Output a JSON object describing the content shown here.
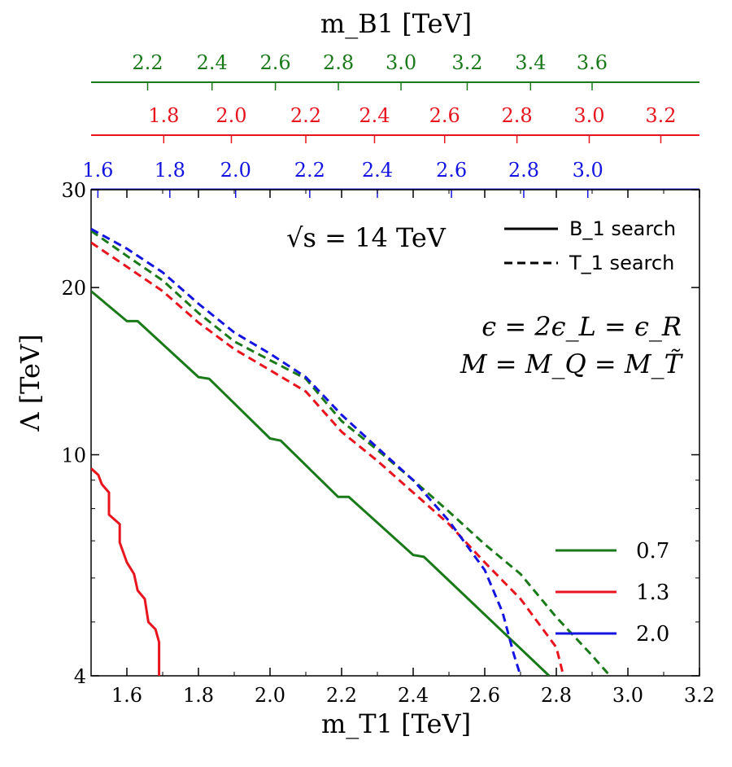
{
  "chart_data": {
    "type": "line",
    "xlabel": "m_T1 [TeV]",
    "ylabel": "Λ [TeV]",
    "yscale": "log",
    "xlim": [
      1.5,
      3.2
    ],
    "ylim": [
      4,
      30
    ],
    "x_ticks": [
      "1.6",
      "1.8",
      "2.0",
      "2.2",
      "2.4",
      "2.6",
      "2.8",
      "3.0",
      "3.2"
    ],
    "x_tick_values": [
      1.6,
      1.8,
      2.0,
      2.2,
      2.4,
      2.6,
      2.8,
      3.0,
      3.2
    ],
    "y_ticks": [
      "4",
      "10",
      "20",
      "30"
    ],
    "y_tick_values": [
      4,
      10,
      20,
      30
    ],
    "y_minor_values": [
      5,
      6,
      7,
      8,
      9
    ],
    "top_axes": [
      {
        "label": "m_B1 [TeV]",
        "color": "#1a7a1a",
        "ticks": [
          "2.2",
          "2.4",
          "2.6",
          "2.8",
          "3.0",
          "3.2",
          "3.4",
          "3.6"
        ],
        "positions_mT1": [
          1.658,
          1.838,
          2.015,
          2.191,
          2.366,
          2.551,
          2.728,
          2.9
        ]
      },
      {
        "label": "",
        "color": "#e8141e",
        "ticks": [
          "1.8",
          "2.0",
          "2.2",
          "2.4",
          "2.6",
          "2.8",
          "3.0",
          "3.2"
        ],
        "positions_mT1": [
          1.703,
          1.892,
          2.1,
          2.292,
          2.488,
          2.69,
          2.892,
          3.092
        ]
      },
      {
        "label": "",
        "color": "#1414e0",
        "ticks": [
          "1.6",
          "1.8",
          "2.0",
          "2.2",
          "2.4",
          "2.6",
          "2.8",
          "3.0"
        ],
        "positions_mT1": [
          1.519,
          1.72,
          1.904,
          2.111,
          2.3,
          2.507,
          2.709,
          2.888
        ]
      }
    ],
    "annotations": {
      "energy": "√s = 14 TeV",
      "eps": "ϵ = 2ϵ_L = ϵ_R",
      "mass": "M = M_Q = M_T̃"
    },
    "style_legend": [
      {
        "label": "B_1 search",
        "dash": "solid"
      },
      {
        "label": "T_1 search",
        "dash": "dashed"
      }
    ],
    "epsilon_legend": [
      {
        "label": "0.7",
        "color": "#1a7a1a"
      },
      {
        "label": "1.3",
        "color": "#e8141e"
      },
      {
        "label": "2.0",
        "color": "#1414e0"
      }
    ],
    "series": [
      {
        "name": "0.7 B1 search",
        "color": "#1a7a1a",
        "dash": "solid",
        "x": [
          1.5,
          1.6,
          1.63,
          1.8,
          1.83,
          2.0,
          2.03,
          2.19,
          2.22,
          2.4,
          2.43,
          2.78
        ],
        "y": [
          19.7,
          17.4,
          17.4,
          13.8,
          13.7,
          10.7,
          10.6,
          8.4,
          8.4,
          6.6,
          6.55,
          4.0
        ]
      },
      {
        "name": "1.3 B1 search",
        "color": "#e8141e",
        "dash": "solid",
        "x": [
          1.5,
          1.52,
          1.53,
          1.55,
          1.55,
          1.58,
          1.58,
          1.6,
          1.62,
          1.63,
          1.65,
          1.66,
          1.68,
          1.69,
          1.69
        ],
        "y": [
          9.45,
          9.2,
          8.85,
          8.55,
          7.8,
          7.5,
          6.95,
          6.4,
          6.1,
          5.7,
          5.5,
          5.0,
          4.85,
          4.6,
          4.0
        ]
      },
      {
        "name": "0.7 T1 search",
        "color": "#1a7a1a",
        "dash": "dashed",
        "x": [
          1.5,
          1.6,
          1.7,
          1.8,
          1.9,
          2.0,
          2.1,
          2.2,
          2.3,
          2.4,
          2.5,
          2.6,
          2.7,
          2.8,
          2.9,
          2.95
        ],
        "y": [
          25.3,
          22.8,
          20.6,
          18.0,
          16.0,
          14.8,
          13.7,
          11.5,
          10.2,
          9.0,
          7.9,
          6.9,
          6.1,
          5.1,
          4.35,
          4.0
        ]
      },
      {
        "name": "1.3 T1 search",
        "color": "#e8141e",
        "dash": "dashed",
        "x": [
          1.5,
          1.6,
          1.7,
          1.8,
          1.9,
          2.0,
          2.1,
          2.2,
          2.3,
          2.4,
          2.5,
          2.6,
          2.7,
          2.8,
          2.82
        ],
        "y": [
          24.1,
          21.8,
          19.7,
          17.3,
          15.5,
          14.2,
          13.0,
          11.0,
          9.75,
          8.55,
          7.5,
          6.4,
          5.5,
          4.5,
          4.0
        ]
      },
      {
        "name": "2.0 T1 search",
        "color": "#1414e0",
        "dash": "dashed",
        "x": [
          1.5,
          1.6,
          1.7,
          1.8,
          1.9,
          2.0,
          2.1,
          2.2,
          2.3,
          2.4,
          2.5,
          2.6,
          2.65,
          2.68,
          2.7
        ],
        "y": [
          25.5,
          23.5,
          21.3,
          18.7,
          16.6,
          15.2,
          13.8,
          11.8,
          10.3,
          9.0,
          7.6,
          6.2,
          5.2,
          4.4,
          4.0
        ]
      }
    ]
  }
}
